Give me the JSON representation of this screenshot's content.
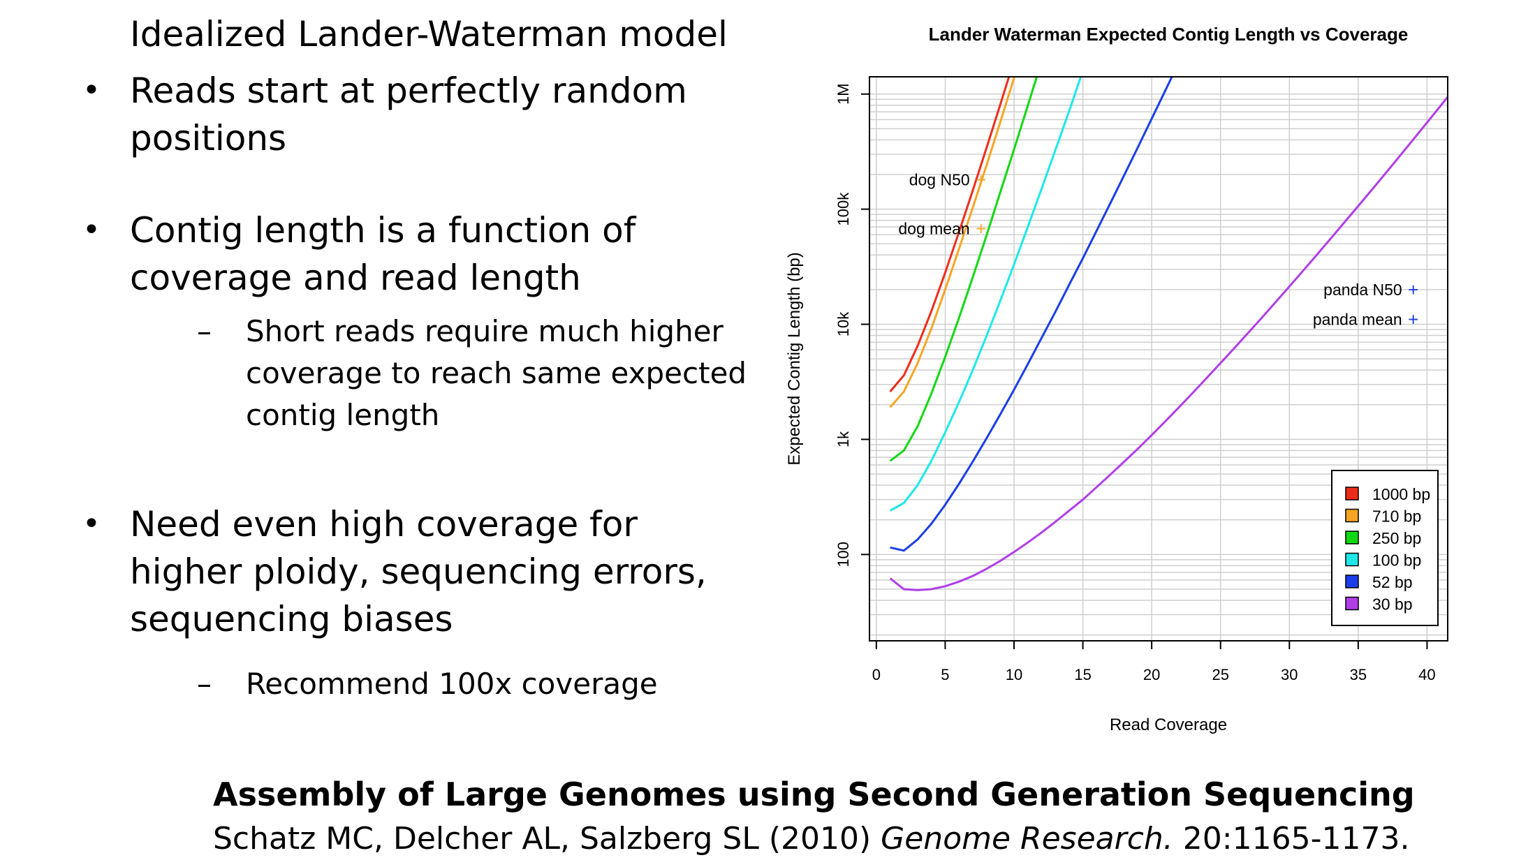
{
  "slide": {
    "title": "Idealized Lander-Waterman model",
    "bullets": [
      {
        "text": "Reads start at perfectly random positions"
      },
      {
        "text": "Contig length is a function of coverage and read length"
      },
      {
        "text": "Need even high coverage for higher ploidy, sequencing errors, sequencing biases"
      }
    ],
    "subbullets": [
      {
        "text": "Short reads require much higher coverage to reach same expected contig length"
      },
      {
        "text": "Recommend 100x coverage"
      }
    ],
    "bullet_marker": "•",
    "sub_marker": "–",
    "citation": {
      "title": "Assembly of Large Genomes using Second Generation Sequencing",
      "authors": "Schatz MC, Delcher AL, Salzberg SL (2010)",
      "journal": "Genome Research.",
      "pages": "20:1165-1173."
    }
  },
  "chart_data": {
    "type": "line",
    "title": "Lander Waterman Expected Contig Length vs Coverage",
    "xlabel": "Read Coverage",
    "ylabel": "Expected Contig Length (bp)",
    "xlim": [
      -0.5,
      41.5
    ],
    "ylim_log10": [
      1.25,
      6.15
    ],
    "y_scale": "log",
    "grid": true,
    "xticks": [
      0,
      5,
      10,
      15,
      20,
      25,
      30,
      35,
      40
    ],
    "yticks": [
      {
        "label": "100",
        "value": 100
      },
      {
        "label": "1k",
        "value": 1000
      },
      {
        "label": "10k",
        "value": 10000
      },
      {
        "label": "100k",
        "value": 100000
      },
      {
        "label": "1M",
        "value": 1000000
      }
    ],
    "legend_position": "bottom-right",
    "series": [
      {
        "name": "1000 bp",
        "color": "#ee2c1a",
        "x": [
          1,
          2,
          3,
          4,
          5,
          6,
          7,
          8,
          9,
          10
        ],
        "y": [
          2600,
          3600,
          6500,
          13000,
          28000,
          63000,
          145000,
          340000,
          810000,
          1950000
        ]
      },
      {
        "name": "710 bp",
        "color": "#f5a623",
        "x": [
          1,
          2,
          3,
          4,
          5,
          6,
          7,
          8,
          9,
          10,
          11
        ],
        "y": [
          1900,
          2600,
          4600,
          9200,
          20000,
          45000,
          103000,
          240000,
          570000,
          1380000,
          3400000
        ]
      },
      {
        "name": "250 bp",
        "color": "#12d812",
        "x": [
          1,
          2,
          3,
          4,
          5,
          6,
          7,
          8,
          9,
          10,
          11,
          12,
          13
        ],
        "y": [
          650,
          800,
          1300,
          2500,
          5200,
          11300,
          25600,
          59000,
          140000,
          330000,
          790000,
          1920000,
          4700000
        ]
      },
      {
        "name": "100 bp",
        "color": "#1ee8e8",
        "x": [
          1,
          2,
          3,
          4,
          5,
          6,
          7,
          8,
          9,
          10,
          11,
          12,
          13,
          14,
          15,
          16
        ],
        "y": [
          240,
          280,
          400,
          650,
          1150,
          2100,
          4000,
          7900,
          16000,
          33000,
          70000,
          150000,
          325000,
          710000,
          1600000,
          3600000
        ]
      },
      {
        "name": "52 bp",
        "color": "#1a3ee8",
        "x": [
          1,
          2,
          3,
          4,
          5,
          6,
          7,
          8,
          9,
          10,
          11,
          12,
          13,
          14,
          15,
          16,
          17,
          18,
          19,
          20,
          21,
          22,
          23
        ],
        "y": [
          115,
          108,
          135,
          185,
          270,
          410,
          640,
          1020,
          1650,
          2700,
          4500,
          7600,
          12800,
          22000,
          37500,
          65000,
          113000,
          197000,
          345000,
          610000,
          1080000,
          1920000,
          3400000
        ]
      },
      {
        "name": "30 bp",
        "color": "#b03ee8",
        "x": [
          1,
          2,
          3,
          4,
          5,
          6,
          7,
          8,
          9,
          10,
          11,
          12,
          13,
          14,
          15,
          16,
          17,
          18,
          19,
          20,
          21,
          22,
          23,
          24,
          25,
          26,
          27,
          28,
          29,
          30,
          31,
          32,
          33,
          34,
          35,
          36,
          37,
          38,
          39,
          40,
          41,
          42
        ],
        "y": [
          62,
          50,
          49,
          50,
          53,
          58,
          65,
          75,
          88,
          105,
          127,
          155,
          192,
          240,
          300,
          385,
          495,
          640,
          830,
          1090,
          1440,
          1910,
          2550,
          3420,
          4600,
          6200,
          8400,
          11400,
          15600,
          21300,
          29200,
          40200,
          55500,
          76800,
          106500,
          148000,
          206000,
          288000,
          403000,
          565000,
          795000,
          1120000
        ]
      }
    ],
    "annotations": [
      {
        "label": "dog N50",
        "x": 7.6,
        "y": 180000,
        "color": "#f5a623"
      },
      {
        "label": "dog mean",
        "x": 7.6,
        "y": 68000,
        "color": "#f5a623"
      },
      {
        "label": "panda N50",
        "x": 39,
        "y": 20000,
        "color": "#1a3ee8"
      },
      {
        "label": "panda mean",
        "x": 39,
        "y": 11000,
        "color": "#1a3ee8"
      }
    ],
    "marker_symbol": "+"
  }
}
